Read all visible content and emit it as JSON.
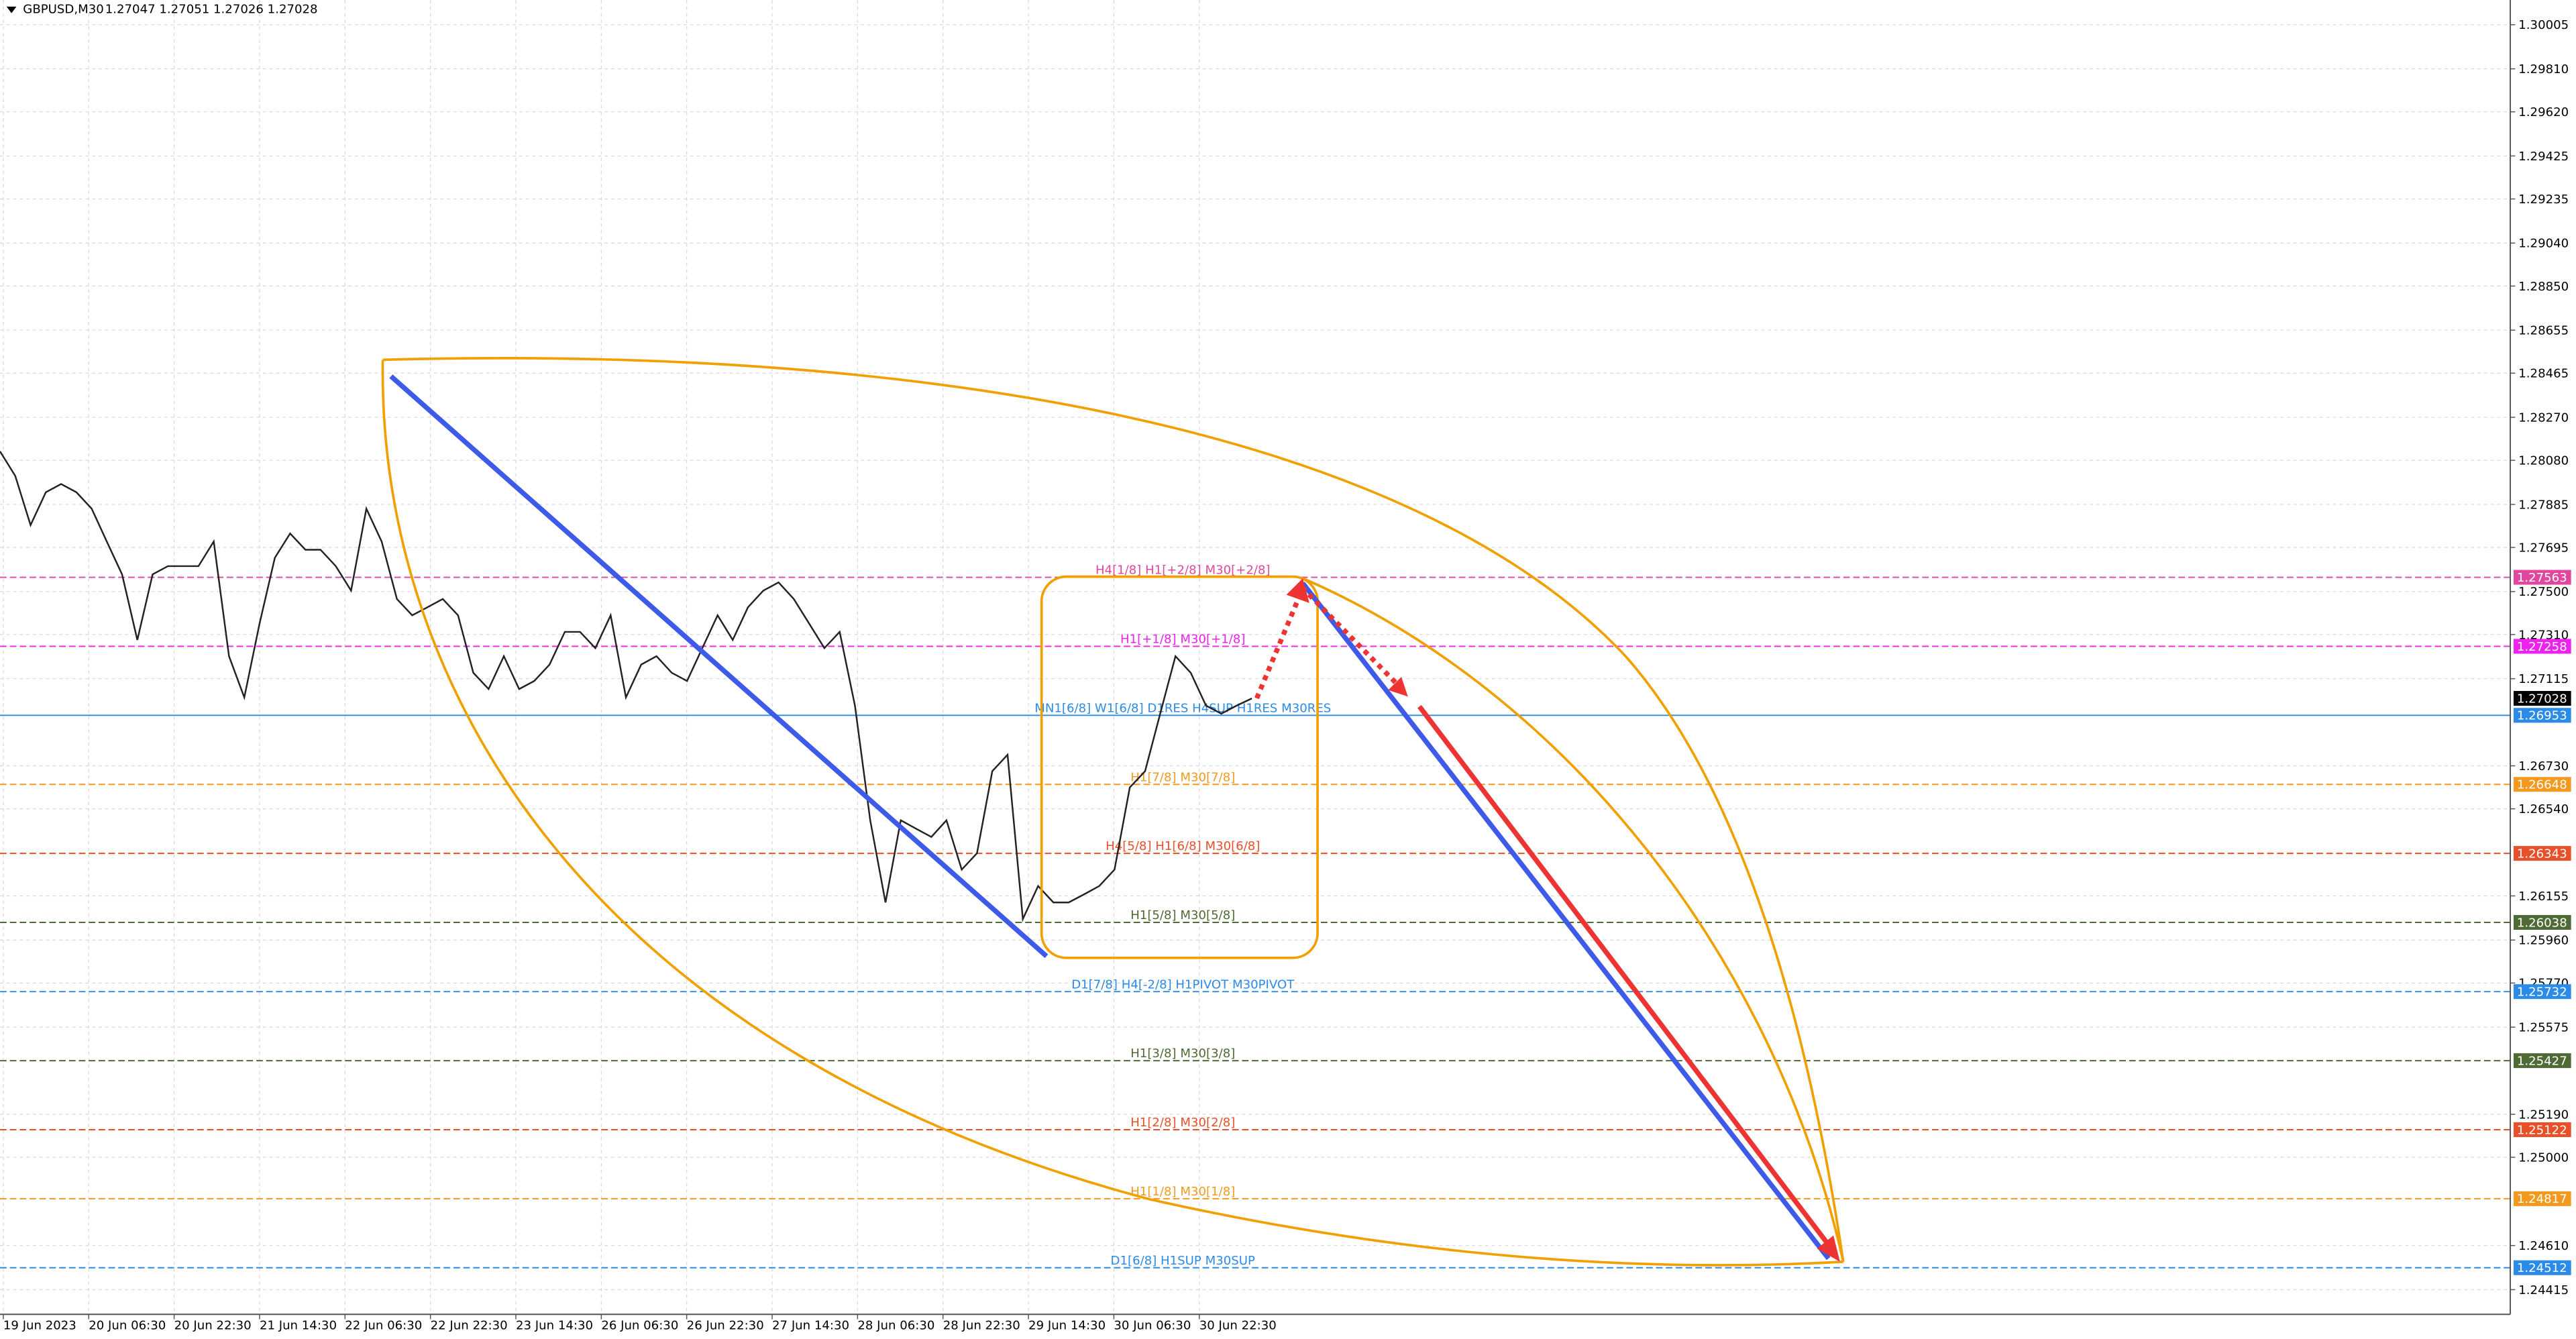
{
  "chart_data": {
    "type": "line",
    "title": "GBPUSD,M30",
    "subtitle": "1.27047 1.27051 1.27026 1.27028",
    "color": "#222222",
    "values": [
      1.2812,
      1.28011,
      1.27794,
      1.27939,
      1.27975,
      1.27939,
      1.27866,
      1.27721,
      1.27576,
      1.27286,
      1.27576,
      1.27612,
      1.27612,
      1.27612,
      1.27721,
      1.27214,
      1.27032,
      1.27359,
      1.27649,
      1.27757,
      1.27685,
      1.27685,
      1.27612,
      1.27504,
      1.27866,
      1.27721,
      1.27467,
      1.27395,
      1.27431,
      1.27467,
      1.27395,
      1.27141,
      1.27069,
      1.27214,
      1.27069,
      1.27105,
      1.27177,
      1.27322,
      1.27322,
      1.2725,
      1.27395,
      1.27032,
      1.27177,
      1.27214,
      1.27141,
      1.27105,
      1.2725,
      1.27395,
      1.27286,
      1.27431,
      1.27504,
      1.2754,
      1.27467,
      1.27359,
      1.2725,
      1.27322,
      1.26996,
      1.26489,
      1.26126,
      1.26489,
      1.26452,
      1.26416,
      1.26489,
      1.26271,
      1.26344,
      1.26706,
      1.26779,
      1.26053,
      1.26199,
      1.26126,
      1.26126,
      1.26162,
      1.26199,
      1.26271,
      1.26634,
      1.26706,
      1.2696,
      1.27214,
      1.27141,
      1.26996,
      1.2696,
      1.26996,
      1.27028
    ],
    "last_price": 1.27028,
    "ylim": [
      1.24306,
      1.30114
    ],
    "yticks": [
      1.30005,
      {
        "value": 1.2981,
        "label": "1.29810"
      },
      {
        "value": 1.2962,
        "label": "1.29620"
      },
      1.29425,
      1.29235,
      {
        "value": 1.2904,
        "label": "1.29040"
      },
      {
        "value": 1.2885,
        "label": "1.28850"
      },
      1.28655,
      1.28465,
      {
        "value": 1.2827,
        "label": "1.28270"
      },
      {
        "value": 1.2808,
        "label": "1.28080"
      },
      1.27885,
      1.27695,
      {
        "value": 1.275,
        "label": "1.27500"
      },
      {
        "value": 1.2731,
        "label": "1.27310"
      },
      1.27115,
      {
        "value": 1.2673,
        "label": "1.26730"
      },
      {
        "value": 1.2654,
        "label": "1.26540"
      },
      1.26155,
      {
        "value": 1.2596,
        "label": "1.25960"
      },
      {
        "value": 1.2577,
        "label": "1.25770"
      },
      1.25575,
      {
        "value": 1.2519,
        "label": "1.25190"
      },
      {
        "value": 1.25,
        "label": "1.25000"
      },
      {
        "value": 1.2461,
        "label": "1.24610"
      },
      1.24415
    ],
    "xlabels": [
      "19 Jun 2023",
      "20 Jun 06:30",
      "20 Jun 22:30",
      "21 Jun 14:30",
      "22 Jun 06:30",
      "22 Jun 22:30",
      "23 Jun 14:30",
      "26 Jun 06:30",
      "26 Jun 22:30",
      "27 Jun 14:30",
      "28 Jun 06:30",
      "28 Jun 22:30",
      "29 Jun 14:30",
      "30 Jun 06:30",
      "30 Jun 22:30"
    ],
    "grid": true,
    "levels": [
      {
        "value": 1.27563,
        "label": "H4[1/8] H1[+2/8] M30[+2/8]",
        "color": "#e2479f"
      },
      {
        "value": 1.27258,
        "label": "H1[+1/8] M30[+1/8]",
        "color": "#ee22ee"
      },
      {
        "value": 1.26953,
        "label": "MN1[6/8] W1[6/8] D1RES H4SUP H1RES M30RES",
        "color": "#2a8be8"
      },
      {
        "value": 1.26648,
        "label": "H1[7/8] M30[7/8]",
        "color": "#f39a1e"
      },
      {
        "value": 1.26343,
        "label": "H4[5/8] H1[6/8] M30[6/8]",
        "color": "#e8502a"
      },
      {
        "value": 1.26038,
        "label": "H1[5/8] M30[5/8]",
        "color": "#4f6b35"
      },
      {
        "value": 1.25732,
        "label": "D1[7/8] H4[-2/8] H1PIVOT M30PIVOT",
        "color": "#2a8be8"
      },
      {
        "value": 1.25427,
        "label": "H1[3/8] M30[3/8]",
        "color": "#4f6b35"
      },
      {
        "value": 1.25122,
        "label": "H1[2/8] M30[2/8]",
        "color": "#e8502a"
      },
      {
        "value": 1.24817,
        "label": "H1[1/8] M30[1/8]",
        "color": "#f39a1e"
      },
      {
        "value": 1.24512,
        "label": "D1[6/8] H1SUP M30SUP",
        "color": "#2a8be8"
      }
    ]
  }
}
